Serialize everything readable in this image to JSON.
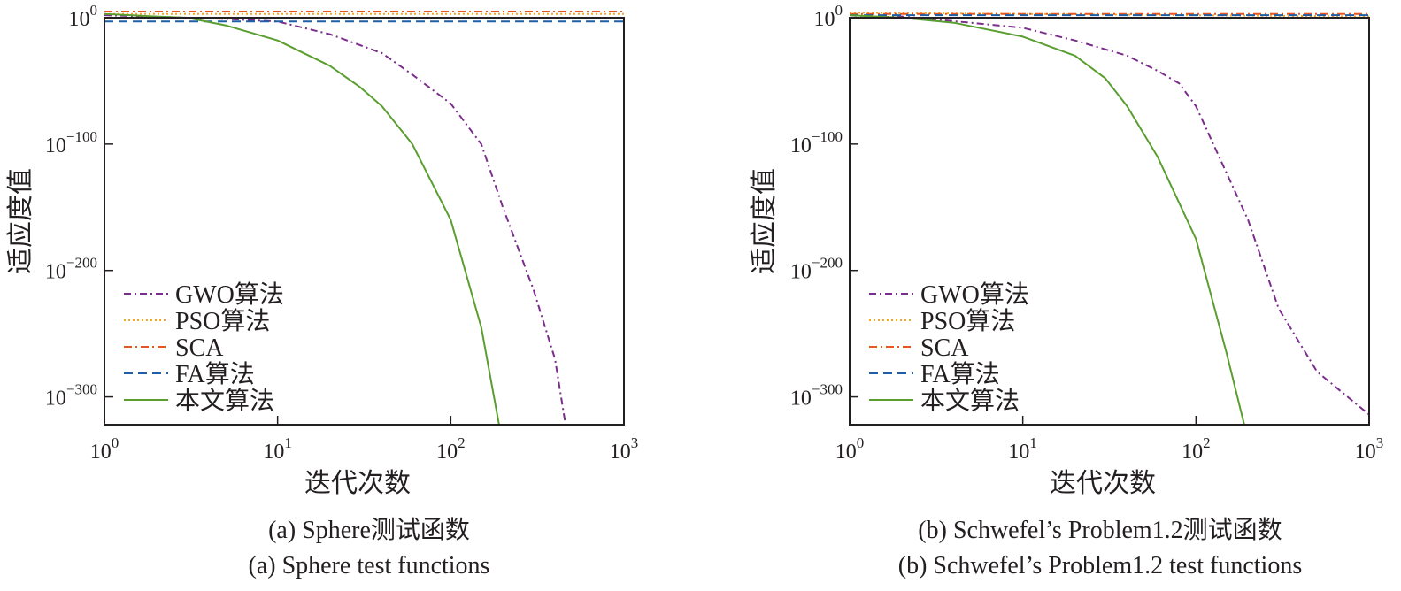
{
  "chart_data": [
    {
      "type": "line",
      "x_scale": "log",
      "y_scale": "log",
      "xlim": [
        1,
        1000
      ],
      "ylim": [
        1e-322,
        1
      ],
      "xlabel": "迭代次数",
      "ylabel": "适应度值",
      "x_ticks": [
        {
          "base": "10",
          "exp": "0",
          "value": 1
        },
        {
          "base": "10",
          "exp": "1",
          "value": 10
        },
        {
          "base": "10",
          "exp": "2",
          "value": 100
        },
        {
          "base": "10",
          "exp": "3",
          "value": 1000
        }
      ],
      "y_ticks": [
        {
          "base": "10",
          "exp": "0",
          "log10": 0
        },
        {
          "base": "10",
          "exp": "−100",
          "log10": -100
        },
        {
          "base": "10",
          "exp": "−200",
          "log10": -200
        },
        {
          "base": "10",
          "exp": "−300",
          "log10": -300
        }
      ],
      "caption_cn": "(a) Sphere测试函数",
      "caption_en": "(a) Sphere test functions",
      "series": [
        {
          "name": "GWO算法",
          "color": "#7b2d8b",
          "dash": "8 4 2 4",
          "log10_y": [
            [
              1,
              2
            ],
            [
              3,
              0
            ],
            [
              5,
              -1
            ],
            [
              10,
              -3
            ],
            [
              20,
              -13
            ],
            [
              40,
              -28
            ],
            [
              60,
              -45
            ],
            [
              100,
              -68
            ],
            [
              150,
              -100
            ],
            [
              200,
              -150
            ],
            [
              300,
              -215
            ],
            [
              400,
              -270
            ],
            [
              460,
              -322
            ]
          ]
        },
        {
          "name": "PSO算法",
          "color": "#f5a623",
          "dash": "2 3",
          "log10_y": [
            [
              1,
              3
            ],
            [
              1000,
              3
            ]
          ]
        },
        {
          "name": "SCA",
          "color": "#e8561f",
          "dash": "9 4 2 4",
          "log10_y": [
            [
              1,
              5
            ],
            [
              1000,
              5
            ]
          ]
        },
        {
          "name": "FA算法",
          "color": "#1f5fa8",
          "dash": "10 6",
          "log10_y": [
            [
              1,
              -3
            ],
            [
              1000,
              -3
            ]
          ]
        },
        {
          "name": "本文算法",
          "color": "#5a9e2f",
          "dash": "",
          "log10_y": [
            [
              1,
              3
            ],
            [
              2,
              1
            ],
            [
              3,
              0
            ],
            [
              5,
              -6
            ],
            [
              10,
              -18
            ],
            [
              20,
              -38
            ],
            [
              30,
              -55
            ],
            [
              40,
              -70
            ],
            [
              60,
              -100
            ],
            [
              100,
              -160
            ],
            [
              150,
              -245
            ],
            [
              190,
              -322
            ]
          ]
        }
      ]
    },
    {
      "type": "line",
      "x_scale": "log",
      "y_scale": "log",
      "xlim": [
        1,
        1000
      ],
      "ylim": [
        1e-322,
        1
      ],
      "xlabel": "迭代次数",
      "ylabel": "适应度值",
      "x_ticks": [
        {
          "base": "10",
          "exp": "0",
          "value": 1
        },
        {
          "base": "10",
          "exp": "1",
          "value": 10
        },
        {
          "base": "10",
          "exp": "2",
          "value": 100
        },
        {
          "base": "10",
          "exp": "3",
          "value": 1000
        }
      ],
      "y_ticks": [
        {
          "base": "10",
          "exp": "0",
          "log10": 0
        },
        {
          "base": "10",
          "exp": "−100",
          "log10": -100
        },
        {
          "base": "10",
          "exp": "−200",
          "log10": -200
        },
        {
          "base": "10",
          "exp": "−300",
          "log10": -300
        }
      ],
      "caption_cn": "(b) Schwefel’s Problem1.2测试函数",
      "caption_en": "(b) Schwefel’s Problem1.2 test functions",
      "series": [
        {
          "name": "GWO算法",
          "color": "#7b2d8b",
          "dash": "8 4 2 4",
          "log10_y": [
            [
              1,
              0
            ],
            [
              2,
              1
            ],
            [
              5,
              -4
            ],
            [
              10,
              -8
            ],
            [
              20,
              -18
            ],
            [
              40,
              -30
            ],
            [
              60,
              -42
            ],
            [
              80,
              -52
            ],
            [
              100,
              -70
            ],
            [
              200,
              -160
            ],
            [
              300,
              -230
            ],
            [
              500,
              -280
            ],
            [
              1000,
              -314
            ]
          ]
        },
        {
          "name": "PSO算法",
          "color": "#f5a623",
          "dash": "2 3",
          "log10_y": [
            [
              1,
              4
            ],
            [
              1000,
              1
            ]
          ]
        },
        {
          "name": "SCA",
          "color": "#e8561f",
          "dash": "9 4 2 4",
          "log10_y": [
            [
              1,
              3
            ],
            [
              1000,
              3
            ]
          ]
        },
        {
          "name": "FA算法",
          "color": "#1f5fa8",
          "dash": "10 6",
          "log10_y": [
            [
              1,
              2
            ],
            [
              1000,
              2
            ]
          ]
        },
        {
          "name": "本文算法",
          "color": "#5a9e2f",
          "dash": "",
          "log10_y": [
            [
              1,
              2
            ],
            [
              2,
              0
            ],
            [
              4,
              -4
            ],
            [
              10,
              -15
            ],
            [
              20,
              -30
            ],
            [
              30,
              -48
            ],
            [
              40,
              -70
            ],
            [
              60,
              -110
            ],
            [
              100,
              -175
            ],
            [
              150,
              -265
            ],
            [
              190,
              -322
            ]
          ]
        }
      ]
    }
  ]
}
